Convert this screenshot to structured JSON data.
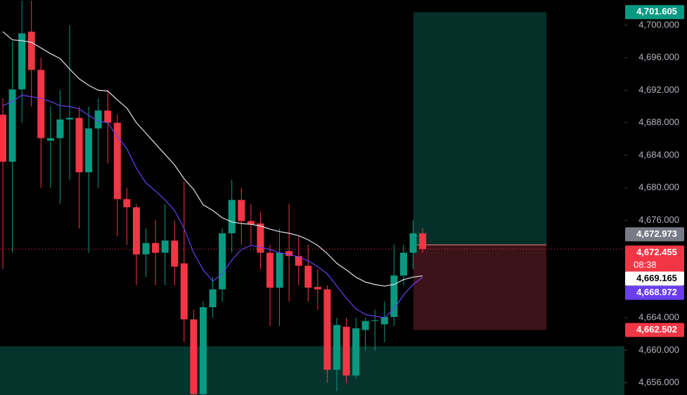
{
  "chart_data": {
    "type": "candlestick",
    "ylim": [
      4654.5,
      4703.1
    ],
    "yticks": [
      {
        "value": 4656,
        "label": "4,656.000"
      },
      {
        "value": 4660,
        "label": "4,660.000"
      },
      {
        "value": 4664,
        "label": "4,664.000"
      },
      {
        "value": 4668,
        "label": "4,668.000"
      },
      {
        "value": 4672,
        "label": "4,672.000"
      },
      {
        "value": 4676,
        "label": "4,676.000"
      },
      {
        "value": 4680,
        "label": "4,680.000"
      },
      {
        "value": 4684,
        "label": "4,684.000"
      },
      {
        "value": 4688,
        "label": "4,688.000"
      },
      {
        "value": 4692,
        "label": "4,692.000"
      },
      {
        "value": 4696,
        "label": "4,696.000"
      },
      {
        "value": 4700,
        "label": "4,700.000"
      }
    ],
    "up_color": "#089981",
    "down_color": "#f23645",
    "open": [
      4689.0,
      4683.2,
      4692.1,
      4699.2,
      4694.5,
      4685.8,
      4686.1,
      4688.4,
      4688.6,
      4681.9,
      4687.3,
      4689.5,
      4688.0,
      4678.6,
      4677.6,
      4671.8,
      4673.2,
      4672.0,
      4673.5,
      4670.7,
      4663.8,
      4654.6,
      4665.3,
      4667.5,
      4674.4,
      4678.5,
      4675.9,
      4675.6,
      4672.0,
      4667.7,
      4672.2,
      4671.6,
      4670.4,
      4667.8,
      4667.5,
      4657.6,
      4662.9,
      4656.9,
      4662.5,
      4663.6,
      4663.2,
      4664.1,
      4669.2,
      4672.0,
      4674.4
    ],
    "high": [
      4691,
      4698,
      4703,
      4703,
      4696,
      4690,
      4692,
      4700,
      4690,
      4690,
      4691,
      4692,
      4689,
      4680,
      4678,
      4675,
      4676,
      4678,
      4676,
      4680.8,
      4665,
      4666,
      4669,
      4675,
      4681,
      4680,
      4678,
      4677,
      4673,
      4675,
      4678,
      4674,
      4673,
      4670,
      4668,
      4664,
      4664,
      4664,
      4664,
      4665,
      4666,
      4673,
      4673,
      4676,
      4675
    ],
    "low": [
      4670,
      4672,
      4688,
      4690,
      4680,
      4680,
      4678,
      4681,
      4675,
      4672,
      4680,
      4683,
      4674,
      4673,
      4668,
      4669,
      4668,
      4668,
      4668,
      4661,
      4654.5,
      4654.5,
      4664,
      4666,
      4672,
      4673,
      4673,
      4670,
      4663,
      4663,
      4666,
      4668,
      4666,
      4665,
      4656,
      4655,
      4656,
      4656.5,
      4660,
      4660,
      4661,
      4663,
      4668,
      4670,
      4672
    ],
    "close": [
      4683.2,
      4692.1,
      4699.0,
      4694.5,
      4686.1,
      4686.1,
      4688.4,
      4688.6,
      4681.9,
      4687.3,
      4689.5,
      4688.0,
      4678.6,
      4677.6,
      4671.8,
      4673.2,
      4672.0,
      4673.5,
      4670.3,
      4663.8,
      4654.6,
      4665.3,
      4667.5,
      4674.4,
      4678.5,
      4675.9,
      4675.5,
      4672.0,
      4667.7,
      4672.0,
      4671.6,
      4670.4,
      4667.7,
      4667.5,
      4657.6,
      4663.1,
      4656.9,
      4662.7,
      4663.6,
      4663.7,
      4664.1,
      4669.2,
      4672.0,
      4674.4,
      4672.455
    ],
    "series": [
      {
        "color": "#e0e3eb",
        "values": [
          4699.2,
          4698.2,
          4698.1,
          4697.9,
          4697.2,
          4696.5,
          4695.9,
          4694.6,
          4693.4,
          4692.6,
          4692.0,
          4691.9,
          4690.8,
          4689.8,
          4688.0,
          4686.7,
          4685.4,
          4684.1,
          4682.8,
          4681.1,
          4679.8,
          4677.9,
          4677.2,
          4676.3,
          4675.8,
          4675.6,
          4675.5,
          4675.3,
          4674.9,
          4674.6,
          4674.4,
          4674.1,
          4673.6,
          4672.9,
          4671.9,
          4670.7,
          4669.9,
          4669.0,
          4668.4,
          4668.1,
          4667.9,
          4668.1,
          4668.7,
          4669.0,
          4669.165
        ]
      },
      {
        "color": "#6a3ef0",
        "values": [
          4690.1,
          4690.6,
          4691.4,
          4691.2,
          4691.0,
          4690.6,
          4690.1,
          4690.0,
          4689.7,
          4688.9,
          4688.2,
          4688.0,
          4686.3,
          4684.8,
          4682.4,
          4680.6,
          4679.6,
          4678.5,
          4677.2,
          4675.0,
          4672.0,
          4669.9,
          4668.5,
          4669.4,
          4671.1,
          4672.4,
          4672.9,
          4672.7,
          4672.4,
          4672.0,
          4671.8,
          4671.5,
          4671.0,
          4670.3,
          4669.4,
          4667.9,
          4666.4,
          4665.1,
          4664.4,
          4664.2,
          4664.0,
          4665.1,
          4666.8,
          4668.1,
          4668.972
        ]
      }
    ],
    "zone": [
      4654.5,
      4660.5
    ],
    "position": {
      "target": 4701.605,
      "entry": 4672.973,
      "stop": 4662.502
    },
    "current_price": 4672.455,
    "countdown": "08:38",
    "price_tags": [
      {
        "value": 4701.605,
        "label": "4,701.605",
        "color": "#089981"
      },
      {
        "value": 4672.973,
        "label": "4,672.973",
        "color": "#787b86"
      },
      {
        "value": 4672.455,
        "label": "4,672.455",
        "color": "#f23645"
      },
      {
        "value": 4669.165,
        "label": "4,669.165",
        "color": "#ffffff"
      },
      {
        "value": 4668.972,
        "label": "4,668.972",
        "color": "#6a3ef0"
      },
      {
        "value": 4662.502,
        "label": "4,662.502",
        "color": "#f23645"
      }
    ]
  }
}
